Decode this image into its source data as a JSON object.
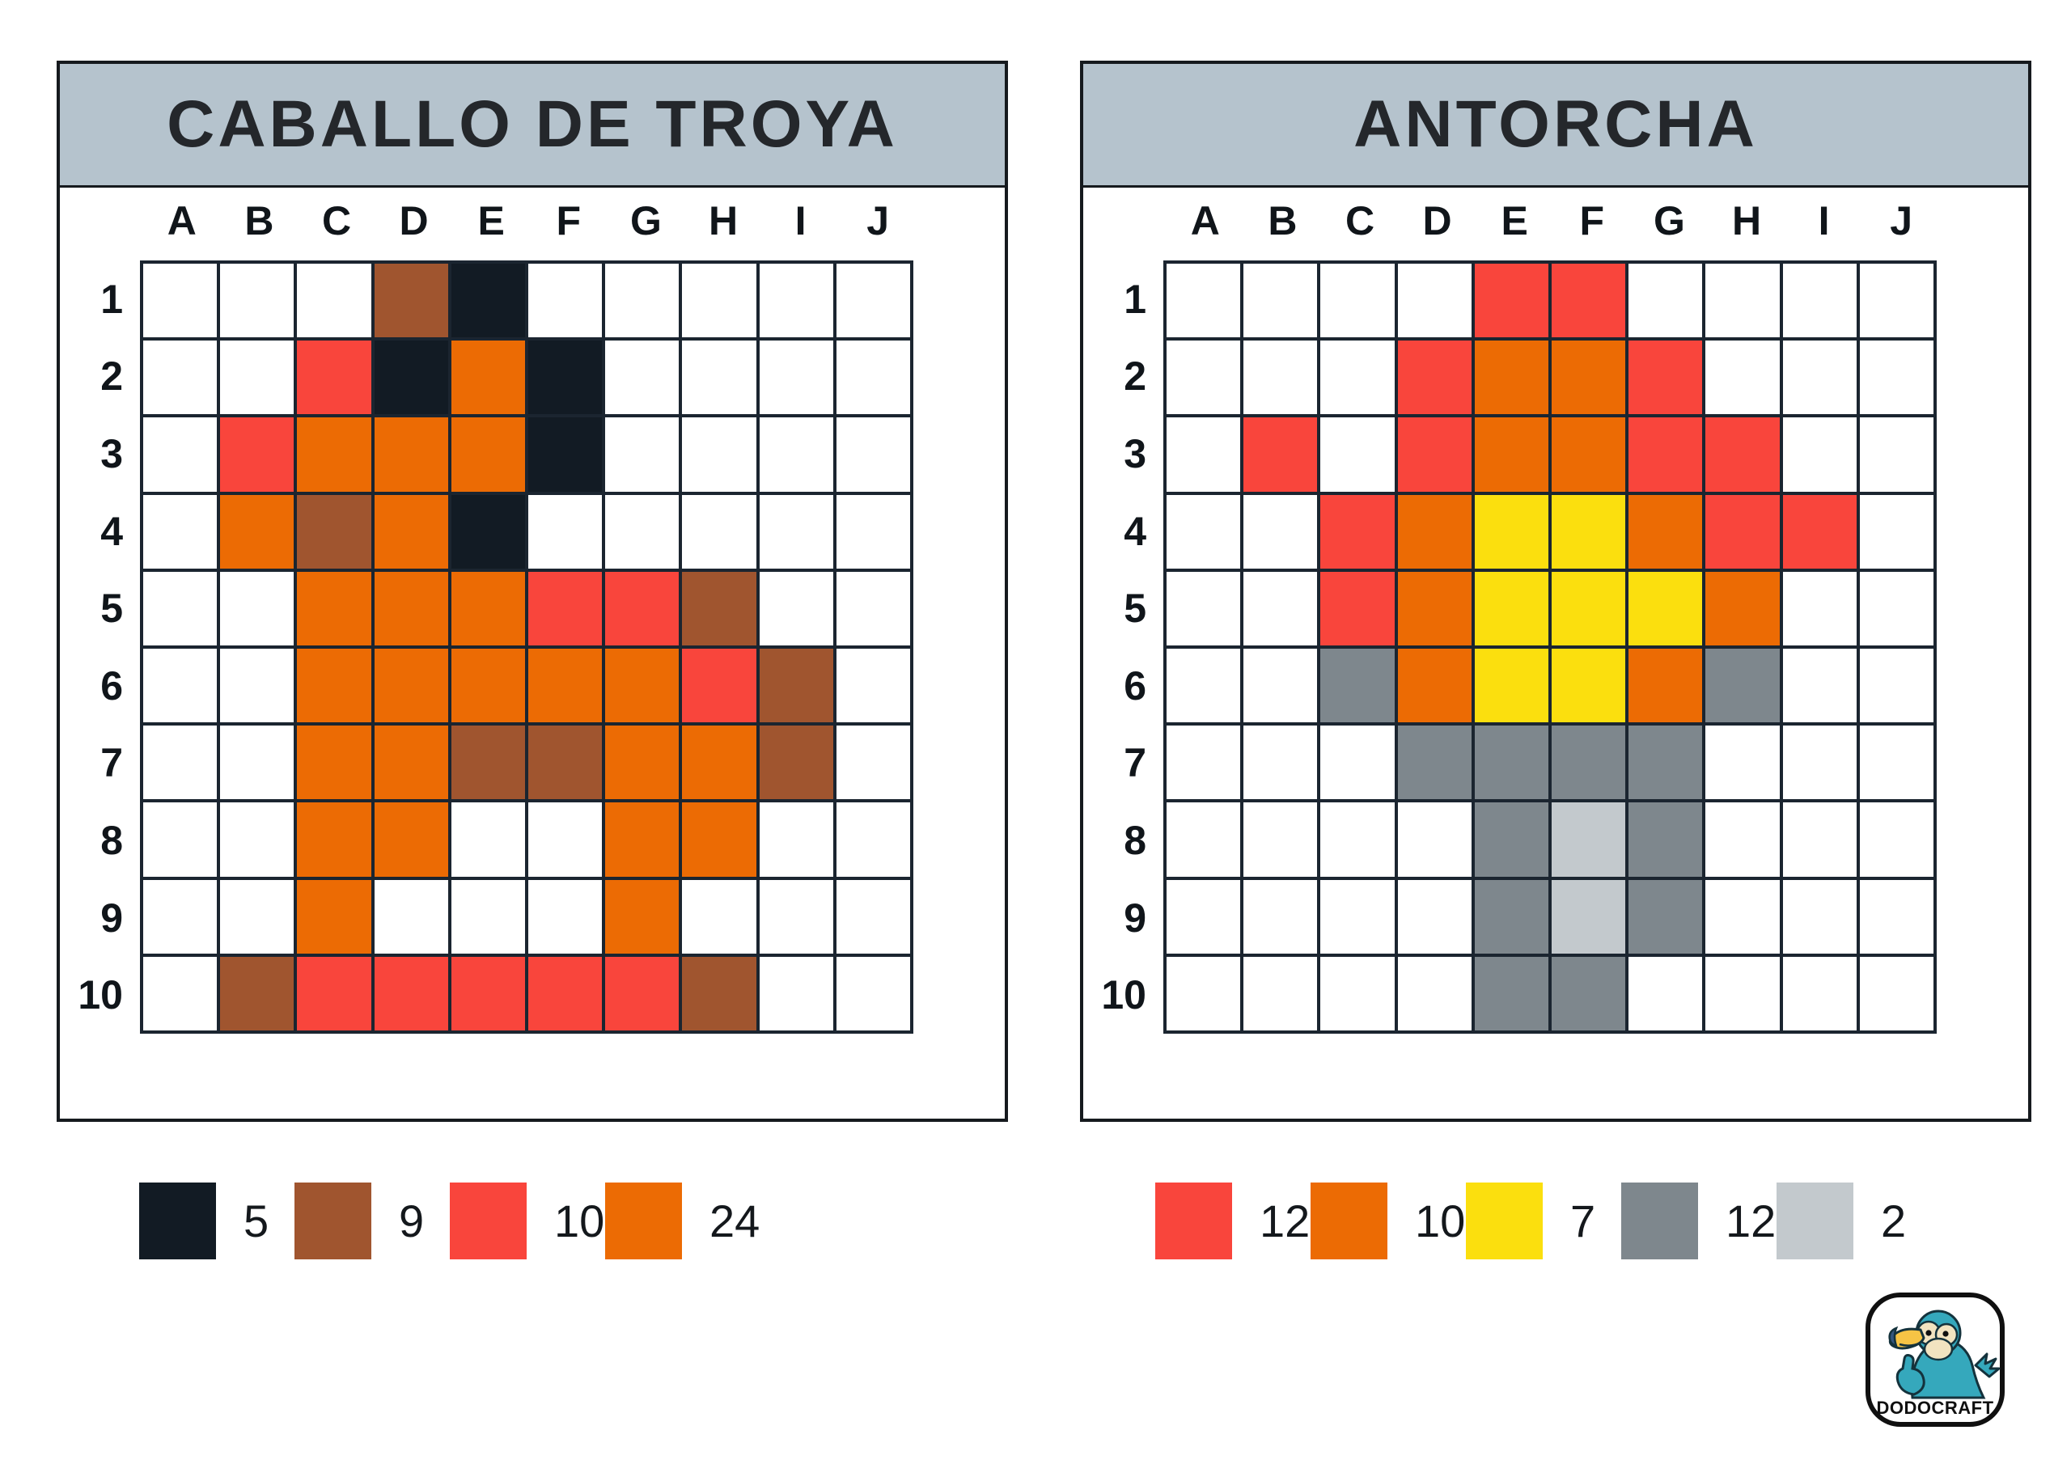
{
  "palette": {
    ".": "#FFFFFF",
    "K": "#121B24",
    "B": "#A0552F",
    "R": "#F9453C",
    "O": "#EC6B04",
    "Y": "#FBDF0E",
    "G": "#7E878D",
    "L": "#C3C9CD"
  },
  "color_names": {
    "K": "black",
    "B": "brown",
    "R": "red",
    "O": "orange",
    "Y": "yellow",
    "G": "gray",
    "L": "light-gray"
  },
  "header_bg": "#B5C3CD",
  "grid_line_color": "#1B2530",
  "col_labels": [
    "A",
    "B",
    "C",
    "D",
    "E",
    "F",
    "G",
    "H",
    "I",
    "J"
  ],
  "row_labels": [
    "1",
    "2",
    "3",
    "4",
    "5",
    "6",
    "7",
    "8",
    "9",
    "10"
  ],
  "puzzles": [
    {
      "title": "CABALLO DE TROYA",
      "rows": [
        "...BK.....",
        "..RKOK....",
        ".ROOOK....",
        ".OBOK.....",
        "..OOORRB..",
        "..OOOOORB.",
        "..OOBBOOB.",
        "..OO..OO..",
        "..O...O...",
        ".BRRRRRB.."
      ],
      "legend": [
        {
          "color": "K",
          "count": "5"
        },
        {
          "color": "B",
          "count": "9"
        },
        {
          "color": "R",
          "count": "10"
        },
        {
          "color": "O",
          "count": "24"
        }
      ]
    },
    {
      "title": "ANTORCHA",
      "rows": [
        "....RR....",
        "...ROOR...",
        ".R.ROORR..",
        "..ROYYORR.",
        "..ROYYYO..",
        "..GOYYOG..",
        "...GGGG...",
        "....GLG...",
        "....GLG...",
        "....GG...."
      ],
      "legend": [
        {
          "color": "R",
          "count": "12"
        },
        {
          "color": "O",
          "count": "10"
        },
        {
          "color": "Y",
          "count": "7"
        },
        {
          "color": "G",
          "count": "12"
        },
        {
          "color": "L",
          "count": "2"
        }
      ]
    }
  ],
  "logo": {
    "text": "DODOCRAFT"
  }
}
